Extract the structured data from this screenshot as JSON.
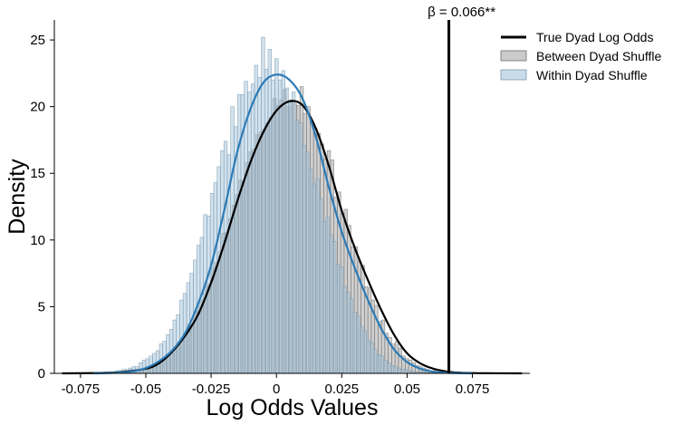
{
  "chart_data": {
    "type": "histogram",
    "xlabel": "Log Odds Values",
    "ylabel": "Density",
    "xlim": [
      -0.085,
      0.097
    ],
    "ylim": [
      0,
      26.5
    ],
    "x_ticks": [
      {
        "value": -0.075,
        "label": "-0.075"
      },
      {
        "value": -0.05,
        "label": "-0.05"
      },
      {
        "value": -0.025,
        "label": "-0.025"
      },
      {
        "value": 0,
        "label": "0"
      },
      {
        "value": 0.025,
        "label": "0.025"
      },
      {
        "value": 0.05,
        "label": "0.05"
      },
      {
        "value": 0.075,
        "label": "0.075"
      }
    ],
    "y_ticks": [
      {
        "value": 0,
        "label": "0"
      },
      {
        "value": 5,
        "label": "5"
      },
      {
        "value": 10,
        "label": "10"
      },
      {
        "value": 15,
        "label": "15"
      },
      {
        "value": 20,
        "label": "20"
      },
      {
        "value": 25,
        "label": "25"
      }
    ],
    "grid": false,
    "legend_position": "top-right",
    "vline": {
      "x": 0.066,
      "label": "β = 0.066**",
      "color": "#000000"
    },
    "series": [
      {
        "name": "True Dyad Log Odds",
        "kind": "vertical-line",
        "color": "#000000"
      },
      {
        "name": "Between Dyad Shuffle",
        "kind": "histogram",
        "fill": "#a9a9a9",
        "fill_opacity": 0.55,
        "edge": "#6e6e6e",
        "bin_width": 0.0013,
        "bins_x": [
          -0.056,
          -0.0547,
          -0.0534,
          -0.0521,
          -0.0508,
          -0.0495,
          -0.0482,
          -0.0469,
          -0.0456,
          -0.0443,
          -0.043,
          -0.0417,
          -0.0404,
          -0.0391,
          -0.0378,
          -0.0365,
          -0.0352,
          -0.0339,
          -0.0326,
          -0.0313,
          -0.03,
          -0.0287,
          -0.0274,
          -0.0261,
          -0.0248,
          -0.0235,
          -0.0222,
          -0.0209,
          -0.0196,
          -0.0183,
          -0.017,
          -0.0157,
          -0.0144,
          -0.0131,
          -0.0118,
          -0.0105,
          -0.0092,
          -0.0079,
          -0.0066,
          -0.0053,
          -0.004,
          -0.0027,
          -0.0014,
          -0.0001,
          0.0012,
          0.0025,
          0.0038,
          0.0051,
          0.0064,
          0.0077,
          0.009,
          0.0103,
          0.0116,
          0.0129,
          0.0142,
          0.0155,
          0.0168,
          0.0181,
          0.0194,
          0.0207,
          0.022,
          0.0233,
          0.0246,
          0.0259,
          0.0272,
          0.0285,
          0.0298,
          0.0311,
          0.0324,
          0.0337,
          0.035,
          0.0363,
          0.0376,
          0.0389,
          0.0402,
          0.0415,
          0.0428,
          0.0441,
          0.0454,
          0.0467,
          0.048,
          0.0493,
          0.0506,
          0.0519,
          0.0532,
          0.0545,
          0.0558,
          0.0571,
          0.0584,
          0.0597,
          0.061,
          0.0623,
          0.0636,
          0.0649,
          0.0662,
          0.0675,
          0.0688
        ],
        "bins_y": [
          0.1,
          0.1,
          0.2,
          0.3,
          0.3,
          0.5,
          0.6,
          0.7,
          0.9,
          1.0,
          1.2,
          1.5,
          1.5,
          1.9,
          2.4,
          2.5,
          3.0,
          3.6,
          3.7,
          4.6,
          5.0,
          5.5,
          6.5,
          6.7,
          7.9,
          8.3,
          9.1,
          10.5,
          10.6,
          11.6,
          12.6,
          13.4,
          14.5,
          14.4,
          15.8,
          16.6,
          16.8,
          17.9,
          18.1,
          18.3,
          18.8,
          19.2,
          20.6,
          20.1,
          20.5,
          21.3,
          20.0,
          20.5,
          20.2,
          20.1,
          21.5,
          19.5,
          20.0,
          18.9,
          18.4,
          18.0,
          17.2,
          16.1,
          16.7,
          16.0,
          13.2,
          13.6,
          12.0,
          12.3,
          11.1,
          9.5,
          9.5,
          8.4,
          8.1,
          6.5,
          6.4,
          5.5,
          5.1,
          3.9,
          4.0,
          3.0,
          2.7,
          2.2,
          2.4,
          1.9,
          1.3,
          1.1,
          1.0,
          0.8,
          0.6,
          0.5,
          0.4,
          0.3,
          0.2,
          0.2,
          0.1,
          0.1,
          0.1,
          0.1,
          0.05,
          0.05,
          0.05
        ]
      },
      {
        "name": "Within Dyad Shuffle",
        "kind": "histogram",
        "fill": "#a6c5dc",
        "fill_opacity": 0.5,
        "edge": "#7899b0",
        "bin_width": 0.0013,
        "bins_x": [
          -0.0695,
          -0.0682,
          -0.0669,
          -0.0656,
          -0.0643,
          -0.063,
          -0.0617,
          -0.0604,
          -0.0591,
          -0.0578,
          -0.0565,
          -0.0552,
          -0.0539,
          -0.0526,
          -0.0513,
          -0.05,
          -0.0487,
          -0.0474,
          -0.0461,
          -0.0448,
          -0.0435,
          -0.0422,
          -0.0409,
          -0.0396,
          -0.0383,
          -0.037,
          -0.0357,
          -0.0344,
          -0.0331,
          -0.0318,
          -0.0305,
          -0.0292,
          -0.0279,
          -0.0266,
          -0.0253,
          -0.024,
          -0.0227,
          -0.0214,
          -0.0201,
          -0.0188,
          -0.0175,
          -0.0162,
          -0.0149,
          -0.0136,
          -0.0123,
          -0.011,
          -0.0097,
          -0.0084,
          -0.0071,
          -0.0058,
          -0.0045,
          -0.0032,
          -0.0019,
          -0.0006,
          0.0007,
          0.002,
          0.0033,
          0.0046,
          0.0059,
          0.0072,
          0.0085,
          0.0098,
          0.0111,
          0.0124,
          0.0137,
          0.015,
          0.0163,
          0.0176,
          0.0189,
          0.0202,
          0.0215,
          0.0228,
          0.0241,
          0.0254,
          0.0267,
          0.028,
          0.0293,
          0.0306,
          0.0319,
          0.0332,
          0.0345,
          0.0358,
          0.0371,
          0.0384,
          0.0397,
          0.041,
          0.0423,
          0.0436,
          0.0449,
          0.0462,
          0.0475,
          0.0488,
          0.0501,
          0.0514,
          0.0527,
          0.054,
          0.0553,
          0.0566,
          0.0579
        ],
        "bins_y": [
          0.05,
          0.05,
          0.05,
          0.1,
          0.1,
          0.1,
          0.2,
          0.2,
          0.3,
          0.3,
          0.4,
          0.5,
          0.5,
          0.8,
          1.0,
          1.1,
          1.3,
          1.5,
          1.7,
          2.2,
          2.4,
          2.9,
          3.3,
          4.0,
          4.4,
          5.5,
          6.0,
          6.8,
          7.5,
          8.5,
          9.6,
          10.2,
          11.9,
          11.8,
          13.5,
          14.3,
          15.5,
          16.7,
          17.4,
          16.4,
          20.0,
          18.5,
          20.9,
          20.9,
          21.9,
          21.1,
          21.7,
          23.1,
          22.2,
          25.2,
          22.8,
          24.3,
          22.0,
          23.6,
          22.0,
          22.7,
          21.4,
          20.5,
          21.1,
          19.0,
          18.8,
          17.1,
          16.6,
          15.3,
          14.2,
          14.6,
          13.1,
          11.4,
          11.7,
          10.4,
          9.9,
          8.2,
          8.0,
          6.5,
          6.1,
          5.6,
          4.6,
          4.3,
          3.5,
          3.2,
          2.5,
          2.3,
          1.8,
          1.4,
          1.3,
          1.0,
          0.8,
          0.6,
          0.5,
          0.4,
          0.3,
          0.3,
          0.2,
          0.15,
          0.1,
          0.1,
          0.1,
          0.05,
          0.05
        ]
      },
      {
        "name": "Between Dyad Shuffle KDE",
        "kind": "line",
        "color": "#000000",
        "x": [
          -0.082,
          -0.07,
          -0.06,
          -0.05,
          -0.045,
          -0.04,
          -0.035,
          -0.03,
          -0.025,
          -0.02,
          -0.015,
          -0.01,
          -0.005,
          0,
          0.005,
          0.01,
          0.015,
          0.02,
          0.025,
          0.03,
          0.035,
          0.04,
          0.045,
          0.05,
          0.055,
          0.06,
          0.065,
          0.07,
          0.08,
          0.094
        ],
        "y": [
          0,
          0.02,
          0.08,
          0.35,
          0.75,
          1.6,
          2.8,
          4.4,
          6.8,
          9.7,
          12.9,
          15.8,
          18.1,
          19.7,
          20.4,
          20.1,
          18.4,
          15.6,
          12.2,
          9.4,
          7.0,
          4.8,
          2.9,
          1.5,
          0.75,
          0.35,
          0.14,
          0.05,
          0.01,
          0
        ]
      },
      {
        "name": "Within Dyad Shuffle KDE",
        "kind": "line",
        "color": "#2c7bb6",
        "x": [
          -0.07,
          -0.06,
          -0.055,
          -0.05,
          -0.045,
          -0.04,
          -0.035,
          -0.03,
          -0.025,
          -0.02,
          -0.015,
          -0.01,
          -0.005,
          0,
          0.005,
          0.01,
          0.015,
          0.02,
          0.025,
          0.03,
          0.035,
          0.04,
          0.045,
          0.05,
          0.055,
          0.06,
          0.065,
          0.075
        ],
        "y": [
          0,
          0.05,
          0.15,
          0.4,
          0.9,
          1.7,
          3.0,
          5.2,
          8.1,
          12.2,
          16.6,
          19.8,
          21.8,
          22.4,
          22.0,
          20.6,
          17.8,
          14.0,
          10.6,
          7.9,
          5.5,
          3.4,
          1.8,
          0.85,
          0.35,
          0.12,
          0.04,
          0
        ]
      }
    ]
  }
}
